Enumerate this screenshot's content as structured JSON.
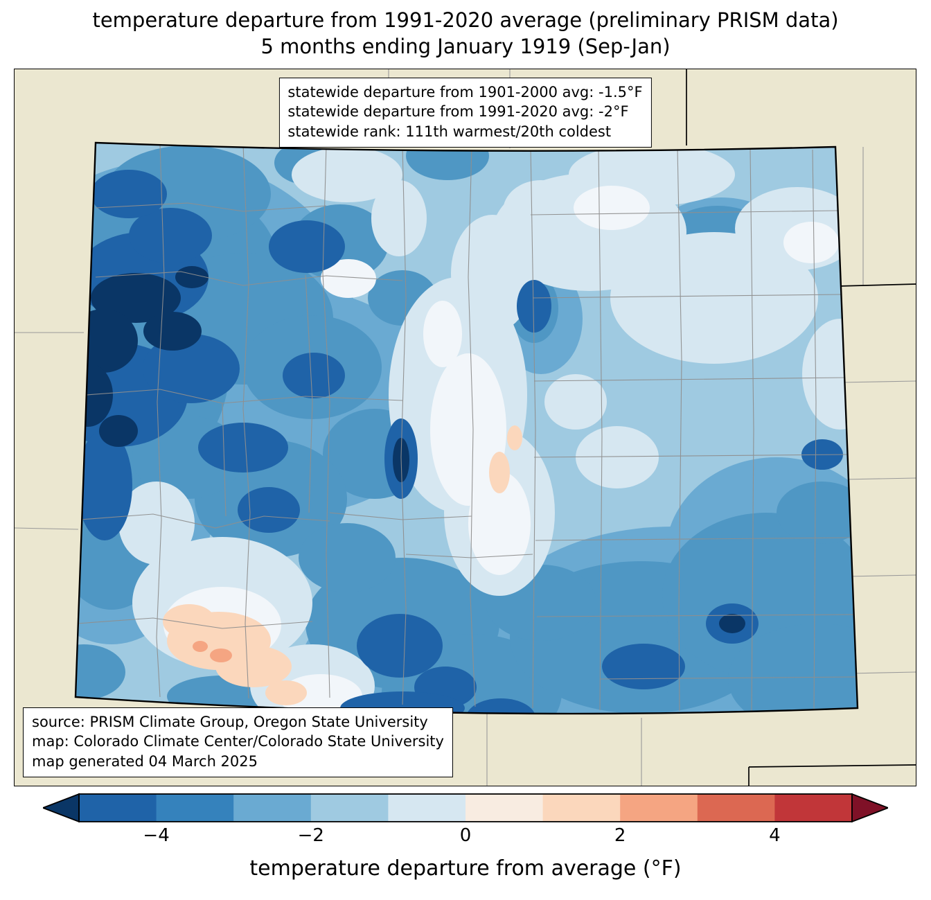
{
  "title": {
    "line1": "temperature departure from 1991-2020 average (preliminary PRISM data)",
    "line2": "5 months ending January 1919 (Sep-Jan)"
  },
  "stats_box": {
    "lines": [
      "statewide departure from 1901-2000 avg: -1.5°F",
      "statewide departure from 1991-2020 avg: -2°F",
      "statewide rank: 111th warmest/20th coldest"
    ]
  },
  "source_box": {
    "lines": [
      "source: PRISM Climate Group, Oregon State University",
      "map: Colorado Climate Center/Colorado State University",
      "map generated 04 March 2025"
    ]
  },
  "colorbar": {
    "label": "temperature departure from average (°F)",
    "tick_labels": [
      "−4",
      "−2",
      "0",
      "2",
      "4"
    ],
    "tick_values": [
      -4,
      -2,
      0,
      2,
      4
    ],
    "range": [
      -5,
      5
    ],
    "colors": [
      "#1f63a8",
      "#3582bc",
      "#6aaad2",
      "#9fcae1",
      "#d6e7f1",
      "#f8ece1",
      "#fbd7bc",
      "#f5a582",
      "#dc6852",
      "#c13639"
    ],
    "arrow_left_color": "#0a3666",
    "arrow_right_color": "#7f1127"
  },
  "map": {
    "depicted_state": "Colorado",
    "background_color": "#ebe7d0",
    "base_color": "#9fcae1"
  }
}
